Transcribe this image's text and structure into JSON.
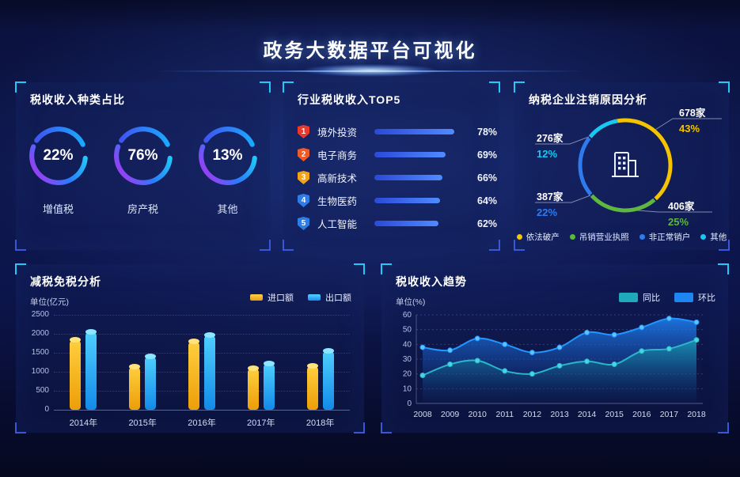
{
  "header": {
    "title": "政务大数据平台可视化"
  },
  "chart_data": [
    {
      "id": "tax-type-donuts",
      "type": "pie",
      "title": "税收收入种类占比",
      "unit": "%",
      "items": [
        {
          "label": "增值税",
          "value": 22,
          "display": "22%"
        },
        {
          "label": "房产税",
          "value": 76,
          "display": "76%"
        },
        {
          "label": "其他",
          "value": 13,
          "display": "13%"
        }
      ]
    },
    {
      "id": "industry-top5",
      "type": "bar",
      "title": "行业税收收入TOP5",
      "ranks": [
        "1",
        "2",
        "3",
        "4",
        "5"
      ],
      "categories": [
        "境外投资",
        "电子商务",
        "高新技术",
        "生物医药",
        "人工智能"
      ],
      "values": [
        78,
        69,
        66,
        64,
        62
      ],
      "displays": [
        "78%",
        "69%",
        "66%",
        "64%",
        "62%"
      ],
      "badge_colors": [
        "#e8392c",
        "#ef5a27",
        "#f2a318",
        "#2e7de5",
        "#2e7de5"
      ],
      "bar_color_start": "#2b49d8",
      "bar_color_end": "#4f8bff",
      "xlim": [
        0,
        100
      ]
    },
    {
      "id": "cancellation-donut",
      "type": "pie",
      "title": "纳税企业注销原因分析",
      "slices": [
        {
          "label": "依法破产",
          "count": "678家",
          "percent": "43%",
          "value": 43,
          "color": "#f5c400"
        },
        {
          "label": "吊销营业执照",
          "count": "406家",
          "percent": "25%",
          "value": 25,
          "color": "#5eb73e"
        },
        {
          "label": "非正常销户",
          "count": "387家",
          "percent": "22%",
          "value": 22,
          "color": "#2e7bf0"
        },
        {
          "label": "其他",
          "count": "276家",
          "percent": "12%",
          "value": 12,
          "color": "#19c8f2"
        }
      ],
      "legend_position": "bottom"
    },
    {
      "id": "tax-reduction-bars",
      "type": "bar",
      "title": "减税免税分析",
      "ylabel": "单位(亿元)",
      "categories": [
        "2014年",
        "2015年",
        "2016年",
        "2017年",
        "2018年"
      ],
      "series": [
        {
          "name": "进口额",
          "color": "#f0a818",
          "values": [
            1850,
            1150,
            1820,
            1100,
            1170
          ]
        },
        {
          "name": "出口额",
          "color": "#23a8f2",
          "values": [
            2070,
            1420,
            1980,
            1230,
            1560
          ]
        }
      ],
      "ylim": [
        0,
        2500
      ],
      "yticks": [
        0,
        500,
        1000,
        1500,
        2000,
        2500
      ],
      "grid": "dotted",
      "legend_position": "top-right"
    },
    {
      "id": "tax-trend",
      "type": "area",
      "title": "税收收入趋势",
      "ylabel": "单位(%)",
      "x": [
        2008,
        2009,
        2010,
        2011,
        2012,
        2013,
        2014,
        2015,
        2016,
        2017,
        2018
      ],
      "series": [
        {
          "name": "同比",
          "color": "#22b3c6",
          "values": [
            19,
            26.5,
            29,
            22,
            20,
            25.5,
            28.5,
            26.5,
            35.5,
            37,
            43
          ]
        },
        {
          "name": "环比",
          "color": "#1e86f5",
          "values": [
            38,
            36,
            44,
            40,
            34.5,
            38,
            48,
            46.5,
            51.5,
            57.5,
            55
          ]
        }
      ],
      "ylim": [
        0,
        60
      ],
      "yticks": [
        0,
        10,
        20,
        30,
        40,
        50,
        60
      ],
      "grid": "dotted",
      "legend_position": "top-right"
    }
  ]
}
